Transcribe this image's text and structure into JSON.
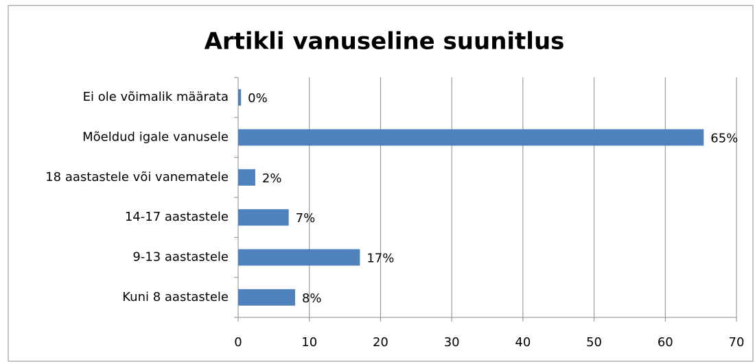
{
  "chart_data": {
    "type": "bar",
    "orientation": "horizontal",
    "title": "Artikli vanuseline suunitlus",
    "categories": [
      "Ei ole võimalik määrata",
      "Mõeldud igale vanusele",
      "18 aastastele või vanematele",
      "14-17 aastastele",
      "9-13 aastastele",
      "Kuni 8 aastastele"
    ],
    "values": [
      0.4,
      65.4,
      2.4,
      7.1,
      17.1,
      8.0
    ],
    "value_labels": [
      "0%",
      "65%",
      "2%",
      "7%",
      "17%",
      "8%"
    ],
    "color": "#4f81bd",
    "xlim": [
      0,
      70
    ],
    "xticks": [
      0,
      10,
      20,
      30,
      40,
      50,
      60,
      70
    ],
    "grid": true
  }
}
